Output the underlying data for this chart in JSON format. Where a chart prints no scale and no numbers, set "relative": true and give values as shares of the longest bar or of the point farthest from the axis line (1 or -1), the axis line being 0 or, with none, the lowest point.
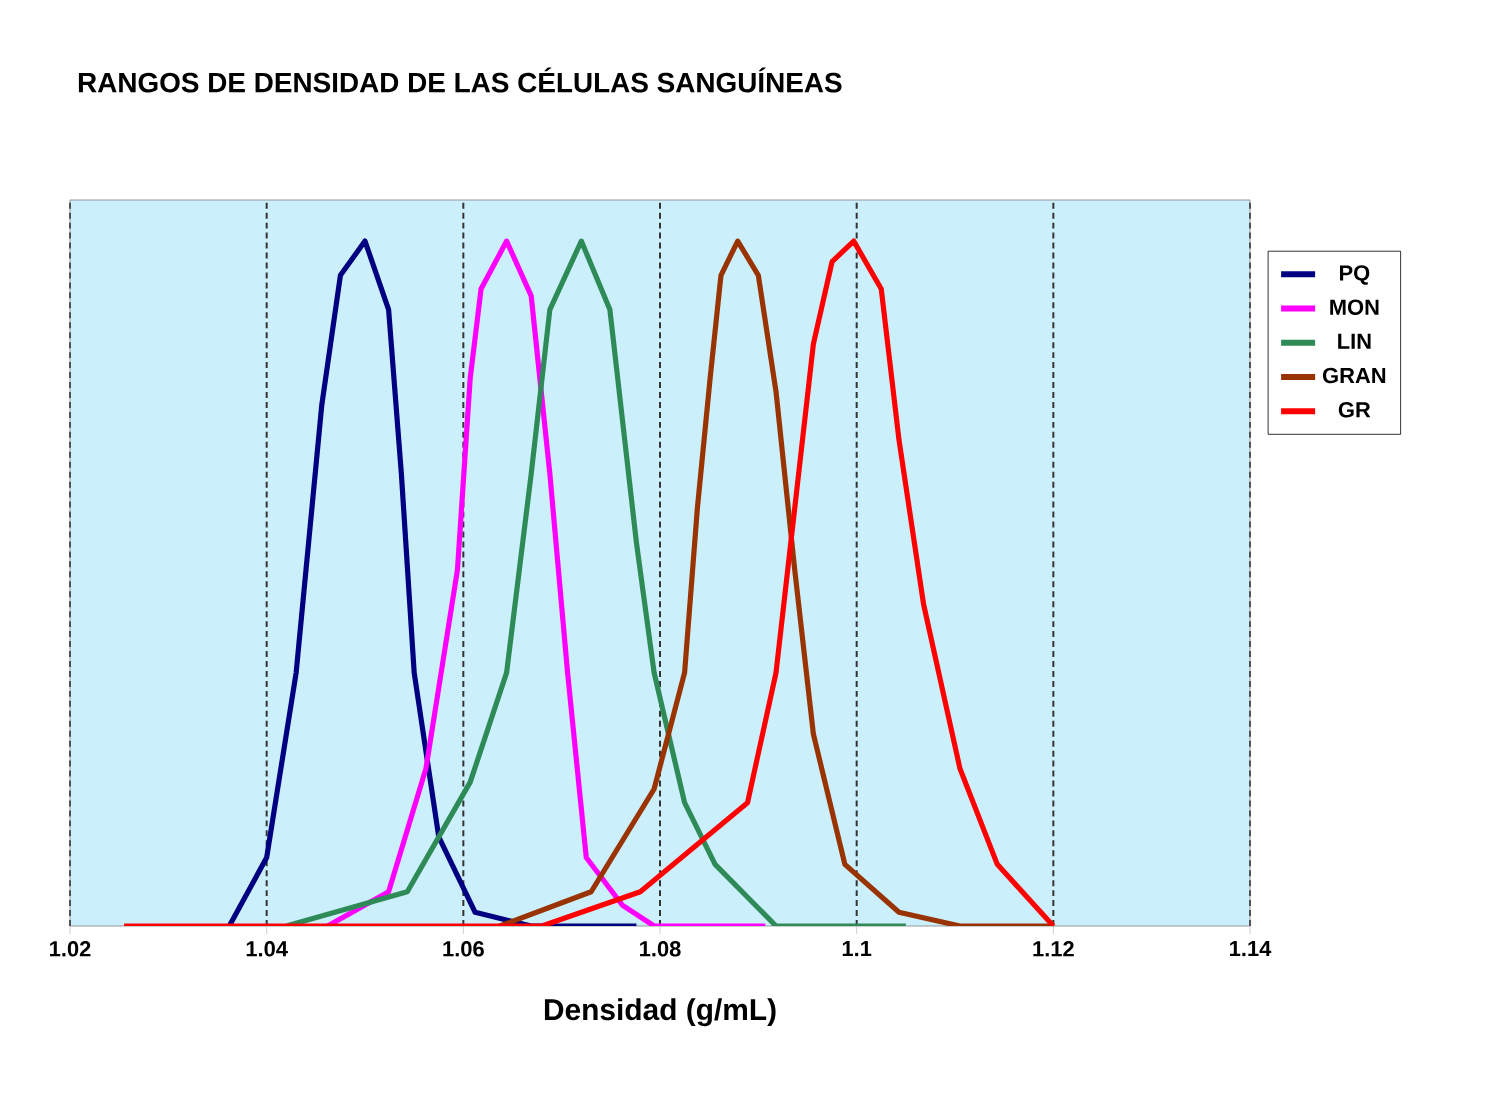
{
  "chart_data": {
    "type": "line",
    "title": "RANGOS DE DENSIDAD DE LAS CÉLULAS SANGUÍNEAS",
    "xlabel": "Densidad (g/mL)",
    "relative": true,
    "xlim": [
      1.02,
      1.14
    ],
    "xticks": [
      1.02,
      1.04,
      1.06,
      1.08,
      1.1,
      1.12,
      1.14
    ],
    "grid": "x",
    "legend": "right",
    "marker": "none",
    "line_style": "solid",
    "series": [
      {
        "name": "PQ",
        "color": "#000080",
        "x": [
          1.0362,
          1.04,
          1.043,
          1.0456,
          1.0475,
          1.05,
          1.0524,
          1.0537,
          1.055,
          1.0575,
          1.0612,
          1.0669,
          1.0776
        ],
        "values": [
          0,
          0.1,
          0.37,
          0.76,
          0.95,
          1.0,
          0.9,
          0.66,
          0.37,
          0.13,
          0.02,
          0,
          0
        ]
      },
      {
        "name": "MON",
        "color": "#ff00ff",
        "x": [
          1.0462,
          1.0524,
          1.0562,
          1.0594,
          1.0607,
          1.0618,
          1.0644,
          1.0669,
          1.0688,
          1.0706,
          1.0725,
          1.0762,
          1.0794,
          1.0907
        ],
        "values": [
          0,
          0.05,
          0.23,
          0.52,
          0.8,
          0.93,
          1.0,
          0.92,
          0.66,
          0.37,
          0.1,
          0.03,
          0,
          0
        ]
      },
      {
        "name": "LIN",
        "color": "#2e8b57",
        "x": [
          1.042,
          1.0543,
          1.0607,
          1.0644,
          1.0669,
          1.0688,
          1.072,
          1.0749,
          1.0776,
          1.0794,
          1.0825,
          1.0856,
          1.0918,
          1.105
        ],
        "values": [
          0,
          0.05,
          0.21,
          0.37,
          0.66,
          0.9,
          1.0,
          0.9,
          0.56,
          0.37,
          0.18,
          0.09,
          0,
          0
        ]
      },
      {
        "name": "GRAN",
        "color": "#993300",
        "x": [
          1.0637,
          1.073,
          1.0794,
          1.0825,
          1.0838,
          1.0851,
          1.0862,
          1.0879,
          1.09,
          1.0918,
          1.0937,
          1.0956,
          1.0988,
          1.1043,
          1.1105,
          1.12
        ],
        "values": [
          0,
          0.05,
          0.2,
          0.37,
          0.61,
          0.8,
          0.95,
          1.0,
          0.95,
          0.78,
          0.52,
          0.28,
          0.09,
          0.02,
          0,
          0
        ]
      },
      {
        "name": "GR",
        "color": "#ff0000",
        "x": [
          1.0255,
          1.068,
          1.078,
          1.0847,
          1.0889,
          1.0918,
          1.0937,
          1.0956,
          1.0975,
          1.0997,
          1.1025,
          1.1043,
          1.1068,
          1.1105,
          1.1143,
          1.12
        ],
        "values": [
          0,
          0,
          0.05,
          0.13,
          0.18,
          0.37,
          0.61,
          0.85,
          0.97,
          1.0,
          0.93,
          0.71,
          0.47,
          0.23,
          0.09,
          0
        ]
      }
    ]
  }
}
